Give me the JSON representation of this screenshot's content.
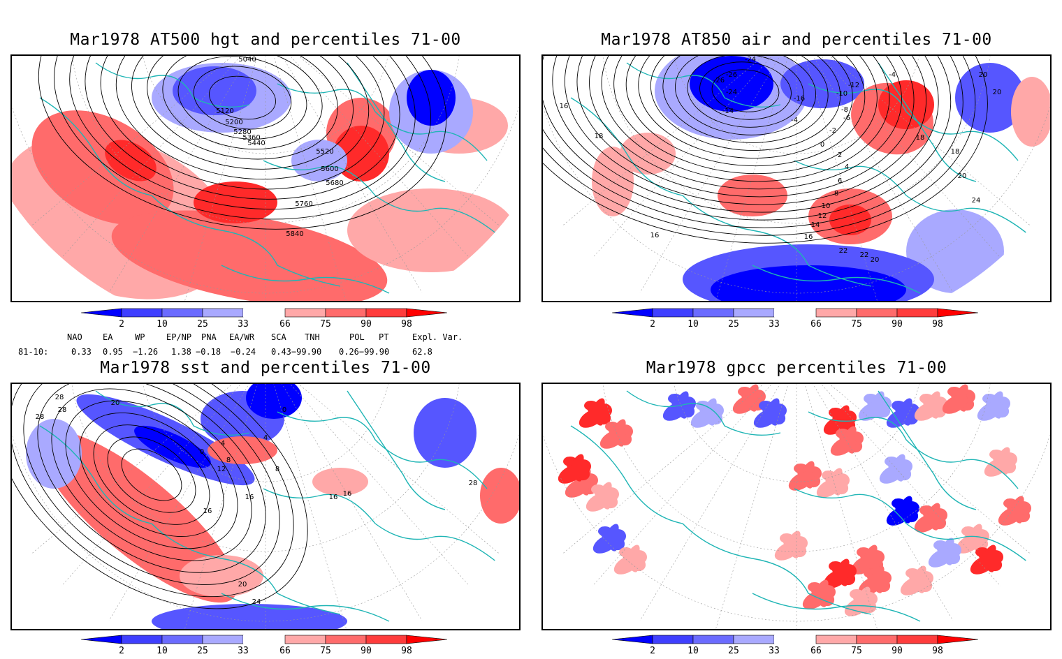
{
  "panels": [
    {
      "id": "hgt",
      "title": "Mar1978 AT500 hgt and percentiles 71-00",
      "contour_labels": [
        "5040",
        "5120",
        "5200",
        "5280",
        "5360",
        "5440",
        "5520",
        "5600",
        "5680",
        "5760",
        "5840"
      ]
    },
    {
      "id": "air",
      "title": "Mar1978 AT850 air and percentiles 71-00",
      "contour_labels": [
        "-24",
        "-26",
        "-26",
        "-24",
        "-14",
        "-16",
        "-12",
        "-10",
        "-8",
        "-6",
        "-4",
        "-4",
        "-2",
        "0",
        "2",
        "4",
        "6",
        "8",
        "10",
        "12",
        "14",
        "16",
        "18",
        "18",
        "20",
        "20",
        "22",
        "22",
        "20",
        "24",
        "16",
        "16",
        "18",
        "20"
      ]
    },
    {
      "id": "sst",
      "title": "Mar1978 sst and percentiles 71-00",
      "contour_labels": [
        "28",
        "28",
        "20",
        "0",
        "4",
        "8",
        "12",
        "16",
        "16",
        "20",
        "24",
        "28",
        "28",
        "0",
        "4",
        "8",
        "16",
        "16"
      ]
    },
    {
      "id": "gpcc",
      "title": "Mar1978 gpcc percentiles 71-00",
      "contour_labels": []
    }
  ],
  "colorbar": {
    "labels": [
      "2",
      "10",
      "25",
      "33",
      "66",
      "75",
      "90",
      "98"
    ],
    "colors": [
      "#0000ff",
      "#3f3fff",
      "#6b6bff",
      "#a9a9ff",
      "#ffffff",
      "#ffa8a8",
      "#ff6b6b",
      "#ff3c3c",
      "#ff0000"
    ]
  },
  "indices": {
    "headers": [
      "NAO",
      "EA",
      "WP",
      "EP/NP",
      "PNA",
      "EA/WR",
      "SCA",
      "TNH",
      "POL",
      "PT",
      "Expl. Var."
    ],
    "row_label": "81-10:",
    "values": [
      "0.33",
      "0.95",
      "−1.26",
      "1.38",
      "−0.18",
      "−0.24",
      "0.43−99.90",
      "0.26−99.90",
      "62.8"
    ]
  },
  "colors": {
    "coast": "#1fb5b5",
    "red_strong": "#ff2a2a",
    "red_mid": "#ff6b6b",
    "red_light": "#ffa8a8",
    "blue_strong": "#0000ff",
    "blue_mid": "#5656ff",
    "blue_light": "#a9a9ff"
  }
}
